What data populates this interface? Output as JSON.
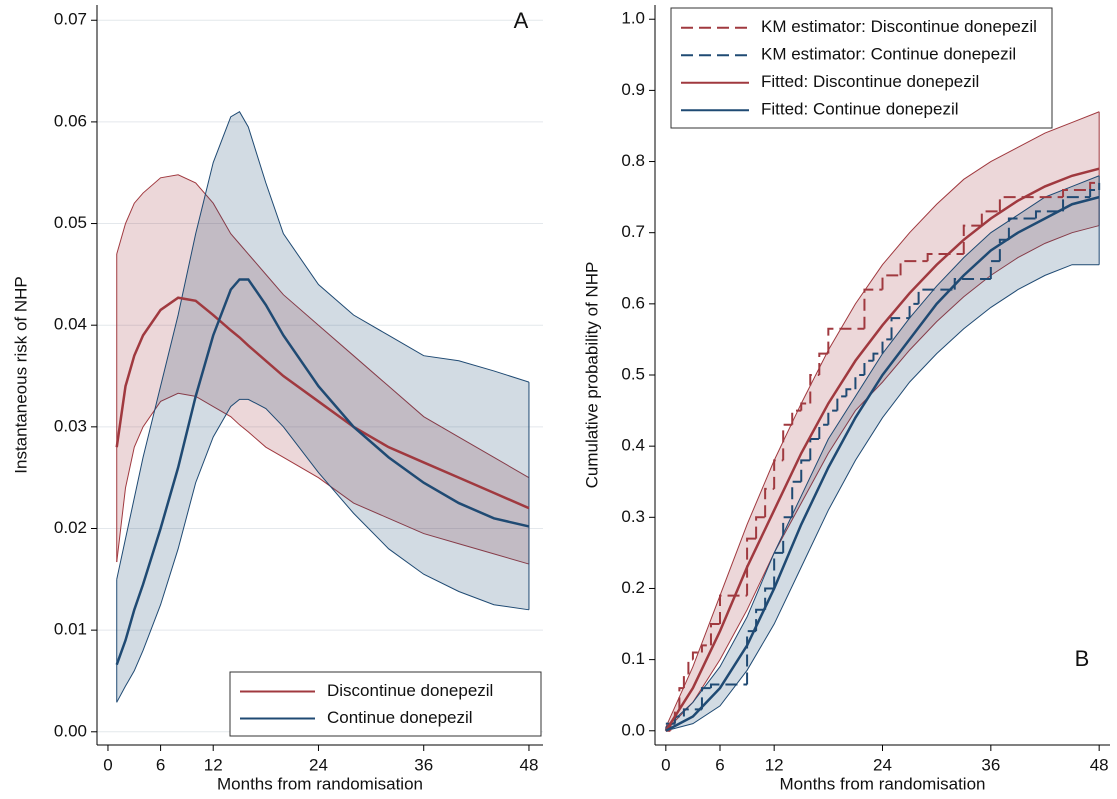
{
  "chart_data": [
    {
      "type": "line",
      "panel_label": "A",
      "x_label": "Months from randomisation",
      "y_label": "Instantaneous risk of NHP",
      "xlim": [
        -1.25,
        49.6
      ],
      "xticks": [
        0,
        6,
        12,
        24,
        36,
        48
      ],
      "ylim": [
        -0.0013,
        0.0715
      ],
      "yticks": [
        {
          "value": 0,
          "label": "0.00"
        },
        0.01,
        0.02,
        0.03,
        0.04,
        0.05,
        0.06,
        0.07
      ],
      "grid": true,
      "legend": "lower right",
      "series": [
        {
          "name": "Discontinue donepezil",
          "color": "#a0393f",
          "style": "solid",
          "x": [
            1,
            2,
            3,
            4,
            6,
            8,
            10,
            12,
            14,
            15,
            16,
            18,
            20,
            24,
            28,
            32,
            36,
            40,
            44,
            48
          ],
          "values": [
            0.028,
            0.034,
            0.037,
            0.039,
            0.0415,
            0.0427,
            0.0424,
            0.041,
            0.0395,
            0.0388,
            0.038,
            0.0365,
            0.035,
            0.0325,
            0.03,
            0.028,
            0.0265,
            0.025,
            0.0235,
            0.022
          ],
          "upper": [
            0.047,
            0.05,
            0.052,
            0.053,
            0.0545,
            0.0548,
            0.054,
            0.052,
            0.049,
            0.048,
            0.047,
            0.045,
            0.043,
            0.04,
            0.037,
            0.034,
            0.031,
            0.029,
            0.027,
            0.025
          ],
          "lower": [
            0.0167,
            0.024,
            0.028,
            0.03,
            0.0325,
            0.0333,
            0.033,
            0.032,
            0.031,
            0.0302,
            0.0295,
            0.028,
            0.027,
            0.025,
            0.0225,
            0.021,
            0.0195,
            0.0185,
            0.0175,
            0.0165
          ]
        },
        {
          "name": "Continue donepezil",
          "color": "#1f4a73",
          "style": "solid",
          "x": [
            1,
            2,
            3,
            4,
            6,
            8,
            10,
            12,
            14,
            15,
            16,
            18,
            20,
            24,
            28,
            32,
            36,
            40,
            44,
            48
          ],
          "values": [
            0.0066,
            0.009,
            0.012,
            0.0145,
            0.02,
            0.026,
            0.033,
            0.039,
            0.0435,
            0.0445,
            0.0445,
            0.042,
            0.039,
            0.034,
            0.03,
            0.027,
            0.0245,
            0.0225,
            0.021,
            0.0202
          ],
          "upper": [
            0.015,
            0.019,
            0.023,
            0.027,
            0.034,
            0.041,
            0.049,
            0.056,
            0.0605,
            0.061,
            0.0595,
            0.054,
            0.049,
            0.044,
            0.041,
            0.039,
            0.037,
            0.0365,
            0.0355,
            0.0344
          ],
          "lower": [
            0.0029,
            0.0045,
            0.006,
            0.008,
            0.0125,
            0.018,
            0.0245,
            0.029,
            0.032,
            0.0327,
            0.0327,
            0.0318,
            0.03,
            0.0255,
            0.0215,
            0.018,
            0.0155,
            0.0138,
            0.0125,
            0.012
          ]
        }
      ]
    },
    {
      "type": "line",
      "panel_label": "B",
      "x_label": "Months from randomisation",
      "y_label": "Cumulative probability of NHP",
      "xlim": [
        -1.2,
        49.2
      ],
      "xticks": [
        0,
        6,
        12,
        24,
        36,
        48
      ],
      "ylim": [
        -0.02,
        1.02
      ],
      "yticks": [
        {
          "value": 0,
          "label": "0.0"
        },
        0.1,
        0.2,
        0.3,
        0.4,
        0.5,
        0.6,
        0.7,
        0.8,
        0.9,
        {
          "value": 1,
          "label": "1.0"
        }
      ],
      "grid": false,
      "legend": "upper left",
      "series": [
        {
          "name": "KM estimator: Discontinue donepezil",
          "color": "#a0393f",
          "style": "dashed",
          "step": true,
          "x": [
            0,
            0.5,
            1,
            1.5,
            2,
            2.5,
            3,
            4,
            5,
            6,
            9,
            10,
            11,
            12,
            13,
            14,
            15,
            16,
            17,
            18,
            22,
            24,
            26,
            29,
            33,
            35,
            37,
            44,
            47,
            48
          ],
          "values": [
            0,
            0.01,
            0.03,
            0.06,
            0.08,
            0.1,
            0.11,
            0.12,
            0.15,
            0.19,
            0.27,
            0.3,
            0.34,
            0.38,
            0.43,
            0.45,
            0.46,
            0.5,
            0.53,
            0.565,
            0.62,
            0.64,
            0.66,
            0.67,
            0.71,
            0.73,
            0.75,
            0.76,
            0.77,
            0.77
          ]
        },
        {
          "name": "KM estimator: Continue donepezil",
          "color": "#1f4a73",
          "style": "dashed",
          "step": true,
          "x": [
            0,
            1,
            2,
            4,
            5,
            9,
            10,
            11,
            12,
            13,
            14,
            15,
            16,
            17,
            18,
            19,
            20,
            21,
            22,
            23,
            24,
            25,
            27,
            28,
            32,
            36,
            37,
            38,
            41,
            44,
            47,
            48
          ],
          "values": [
            0.01,
            0.02,
            0.03,
            0.06,
            0.065,
            0.14,
            0.17,
            0.2,
            0.25,
            0.3,
            0.35,
            0.38,
            0.41,
            0.43,
            0.45,
            0.47,
            0.48,
            0.5,
            0.52,
            0.53,
            0.55,
            0.58,
            0.6,
            0.62,
            0.635,
            0.66,
            0.69,
            0.72,
            0.73,
            0.75,
            0.76,
            0.77
          ]
        },
        {
          "name": "Fitted: Discontinue donepezil",
          "color": "#a0393f",
          "style": "solid",
          "x": [
            0,
            3,
            6,
            9,
            12,
            15,
            18,
            21,
            24,
            27,
            30,
            33,
            36,
            39,
            42,
            45,
            48
          ],
          "values": [
            0,
            0.06,
            0.14,
            0.23,
            0.31,
            0.39,
            0.46,
            0.52,
            0.57,
            0.615,
            0.655,
            0.69,
            0.72,
            0.745,
            0.765,
            0.78,
            0.79
          ],
          "upper": [
            0.005,
            0.09,
            0.19,
            0.29,
            0.38,
            0.46,
            0.535,
            0.6,
            0.655,
            0.7,
            0.74,
            0.775,
            0.8,
            0.82,
            0.84,
            0.855,
            0.87
          ],
          "lower": [
            0,
            0.04,
            0.1,
            0.17,
            0.25,
            0.32,
            0.39,
            0.45,
            0.49,
            0.535,
            0.575,
            0.61,
            0.64,
            0.665,
            0.685,
            0.7,
            0.71
          ]
        },
        {
          "name": "Fitted: Continue donepezil",
          "color": "#1f4a73",
          "style": "solid",
          "x": [
            0,
            3,
            6,
            9,
            12,
            15,
            18,
            21,
            24,
            27,
            30,
            33,
            36,
            39,
            42,
            45,
            48
          ],
          "values": [
            0,
            0.02,
            0.06,
            0.12,
            0.2,
            0.29,
            0.37,
            0.44,
            0.5,
            0.55,
            0.6,
            0.64,
            0.675,
            0.7,
            0.72,
            0.74,
            0.75
          ],
          "upper": [
            0.005,
            0.04,
            0.09,
            0.16,
            0.25,
            0.33,
            0.41,
            0.47,
            0.53,
            0.58,
            0.625,
            0.665,
            0.7,
            0.725,
            0.75,
            0.765,
            0.78
          ],
          "lower": [
            0,
            0.01,
            0.035,
            0.085,
            0.15,
            0.23,
            0.31,
            0.38,
            0.44,
            0.49,
            0.53,
            0.565,
            0.595,
            0.62,
            0.64,
            0.655,
            0.655
          ]
        }
      ]
    }
  ]
}
